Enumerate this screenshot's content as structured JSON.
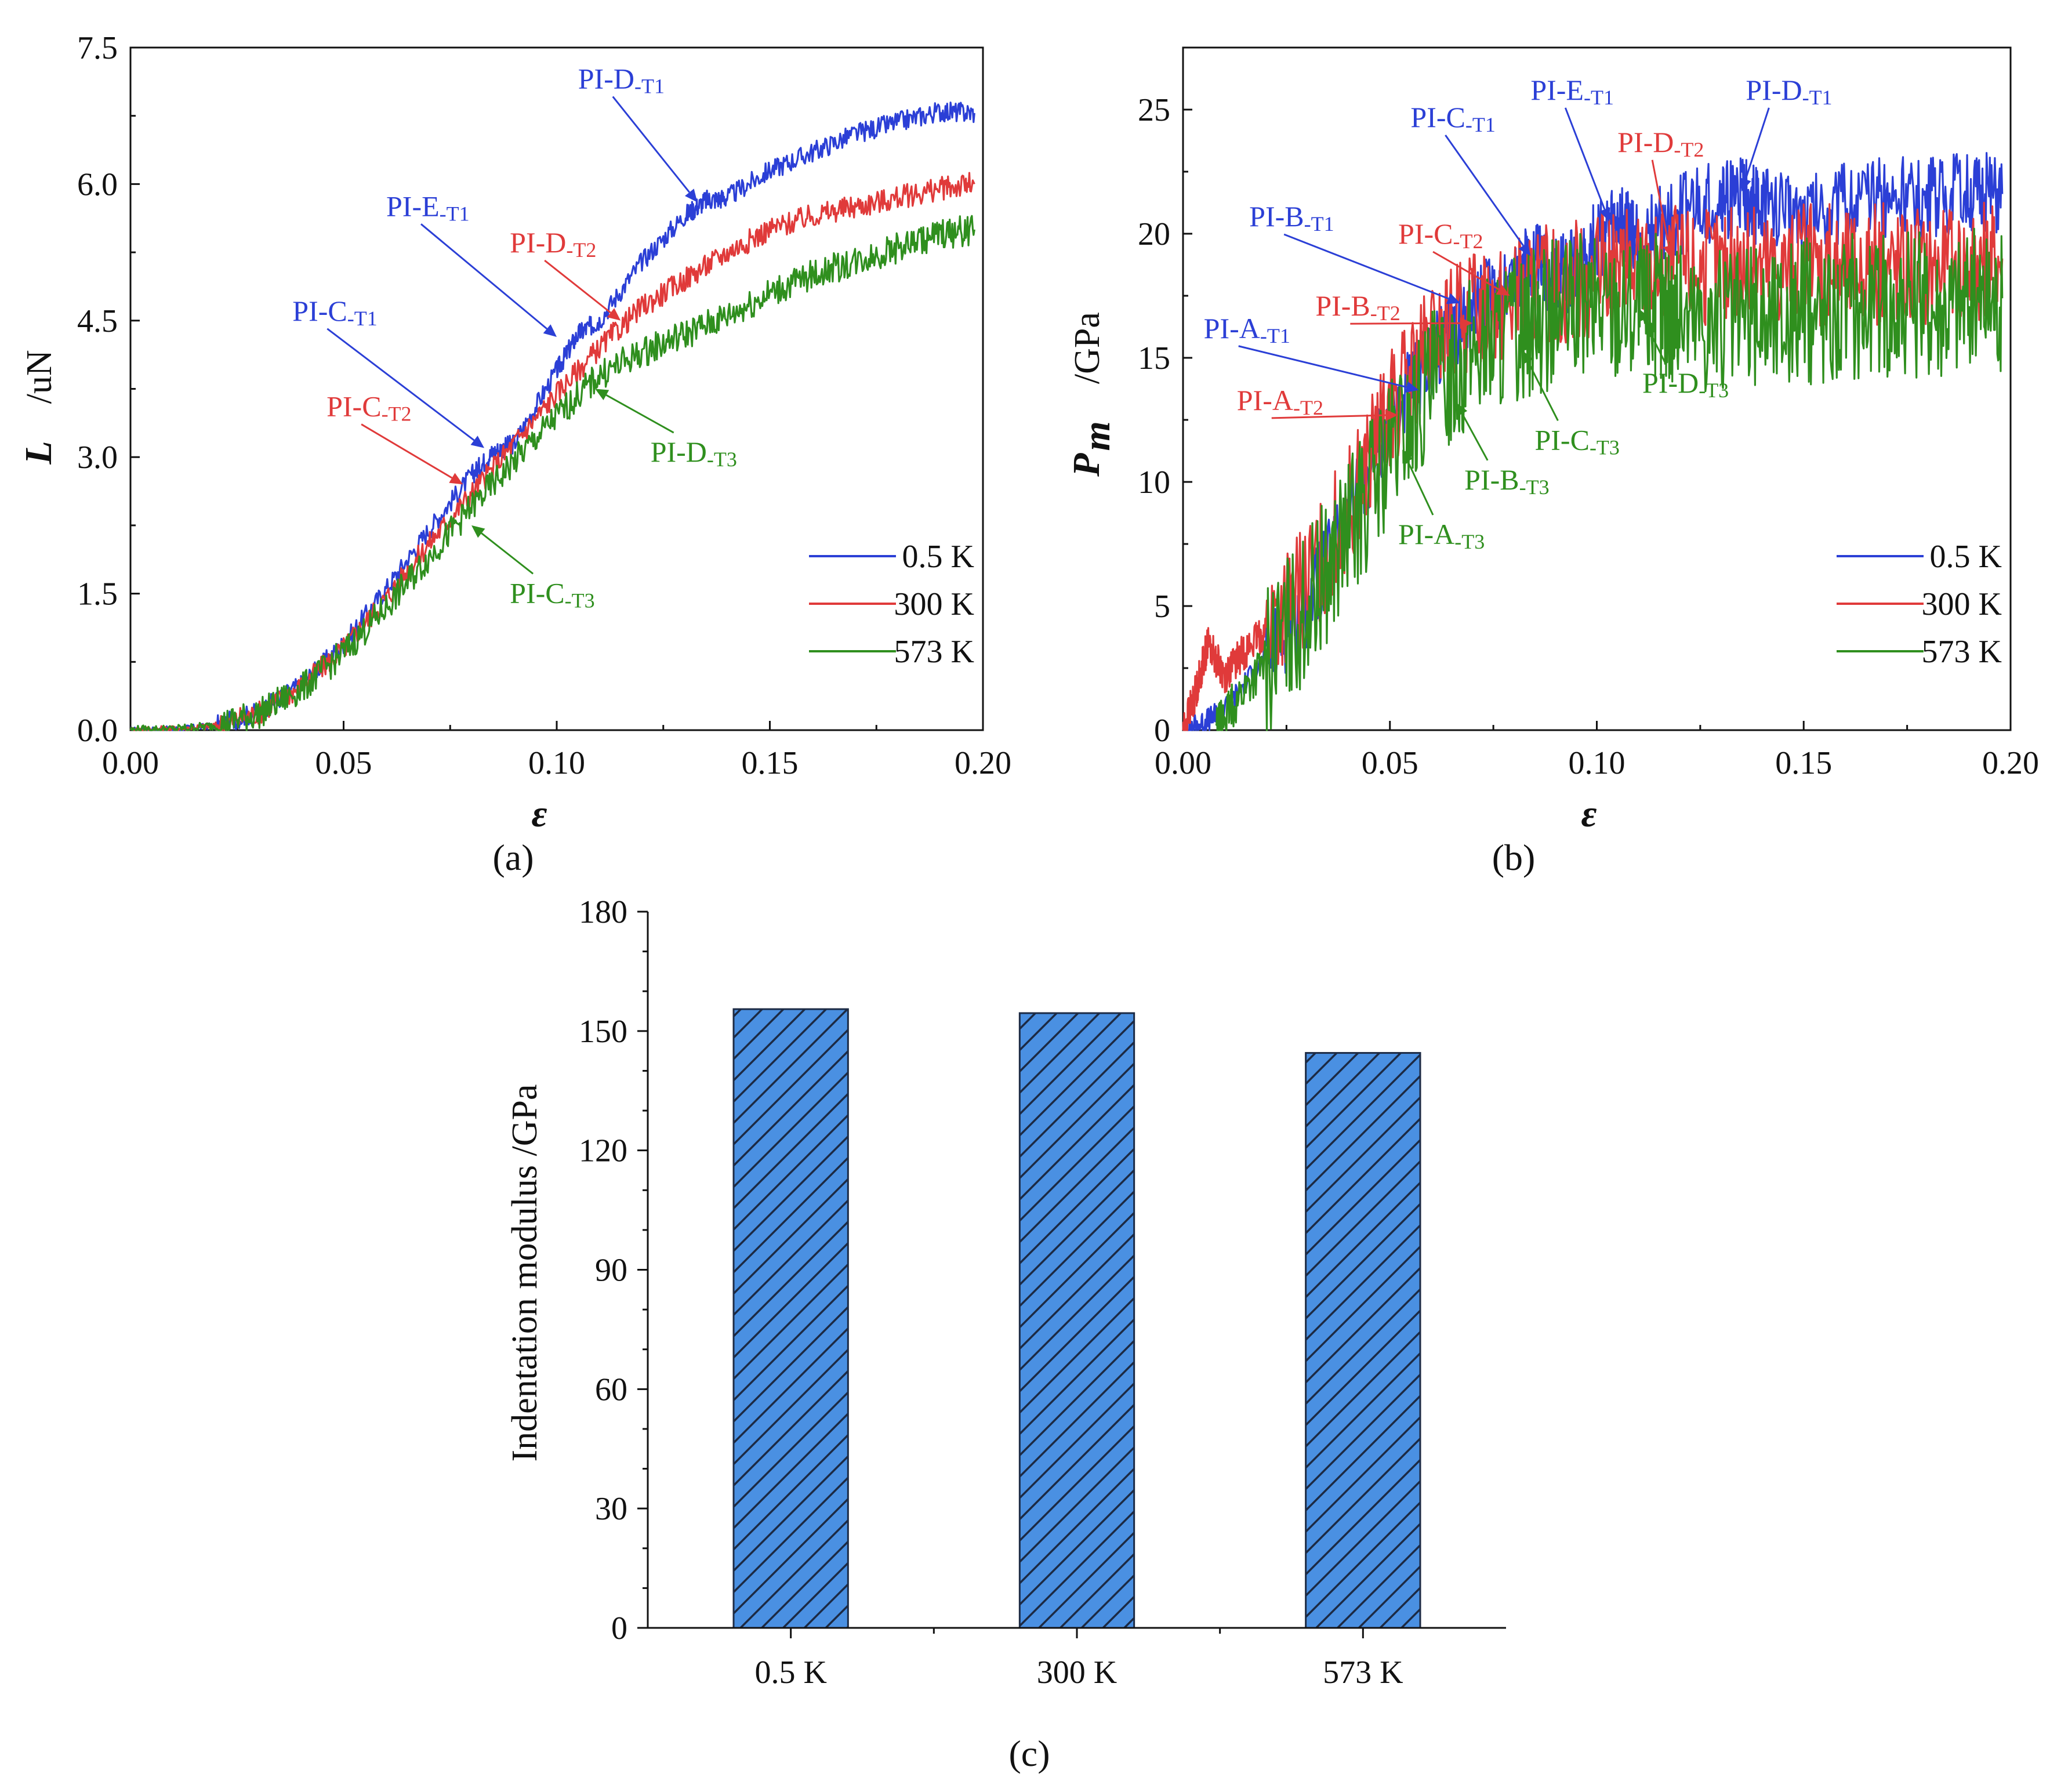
{
  "figure": {
    "colors": {
      "t1": "#2b3fd6",
      "t2": "#e03a3a",
      "t3": "#2f8f1e",
      "bar": "#4a90e2",
      "hatch": "#1c2a44"
    }
  },
  "chart_data": [
    {
      "id": "a",
      "panel_label": "(a)",
      "type": "line",
      "xlabel": "ε",
      "ylabel_var": "L",
      "ylabel_unit": "/uN",
      "xlim": [
        0,
        0.2
      ],
      "ylim": [
        0,
        7.5
      ],
      "xticks": [
        "0.00",
        "0.05",
        "0.10",
        "0.15",
        "0.20"
      ],
      "yticks": [
        "0.0",
        "1.5",
        "3.0",
        "4.5",
        "6.0",
        "7.5"
      ],
      "xtick_values": [
        0,
        0.05,
        0.1,
        0.15,
        0.2
      ],
      "ytick_values": [
        0,
        1.5,
        3.0,
        4.5,
        6.0,
        7.5
      ],
      "legend": {
        "position": "bottom-right",
        "entries": [
          "0.5 K",
          "300 K",
          "573 K"
        ]
      },
      "series": [
        {
          "name": "0.5 K",
          "color": "#2b3fd6",
          "noise": 0.03,
          "x": [
            0,
            0.01,
            0.02,
            0.03,
            0.04,
            0.05,
            0.06,
            0.07,
            0.08,
            0.085,
            0.09,
            0.1,
            0.105,
            0.11,
            0.12,
            0.13,
            0.135,
            0.14,
            0.15,
            0.16,
            0.17,
            0.18,
            0.19,
            0.198
          ],
          "y": [
            0,
            0.01,
            0.05,
            0.2,
            0.5,
            0.95,
            1.55,
            2.2,
            2.8,
            3.05,
            3.15,
            3.95,
            4.35,
            4.5,
            5.15,
            5.65,
            5.82,
            5.85,
            6.15,
            6.35,
            6.55,
            6.68,
            6.8,
            6.78
          ]
        },
        {
          "name": "300 K",
          "color": "#e03a3a",
          "noise": 0.035,
          "x": [
            0,
            0.01,
            0.02,
            0.03,
            0.04,
            0.05,
            0.06,
            0.07,
            0.08,
            0.09,
            0.1,
            0.11,
            0.12,
            0.13,
            0.14,
            0.15,
            0.16,
            0.17,
            0.18,
            0.19,
            0.198
          ],
          "y": [
            0,
            0.01,
            0.05,
            0.19,
            0.48,
            0.9,
            1.45,
            2.05,
            2.6,
            3.15,
            3.7,
            4.2,
            4.65,
            4.95,
            5.25,
            5.5,
            5.65,
            5.75,
            5.85,
            5.95,
            6.0
          ]
        },
        {
          "name": "573 K",
          "color": "#2f8f1e",
          "noise": 0.045,
          "x": [
            0,
            0.01,
            0.02,
            0.03,
            0.04,
            0.05,
            0.06,
            0.07,
            0.08,
            0.09,
            0.1,
            0.11,
            0.12,
            0.13,
            0.14,
            0.15,
            0.16,
            0.17,
            0.18,
            0.19,
            0.198
          ],
          "y": [
            0,
            0.01,
            0.05,
            0.18,
            0.45,
            0.85,
            1.35,
            1.9,
            2.45,
            2.95,
            3.45,
            3.9,
            4.15,
            4.35,
            4.55,
            4.8,
            5.0,
            5.15,
            5.3,
            5.45,
            5.5
          ]
        }
      ],
      "annotations": [
        {
          "main": "PI-D",
          "sub": "-T1",
          "color": "#2b3fd6",
          "pt": [
            0.133,
            5.8
          ],
          "txt": [
            0.105,
            7.05
          ],
          "arrow": true
        },
        {
          "main": "PI-E",
          "sub": "-T1",
          "color": "#2b3fd6",
          "pt": [
            0.1,
            4.32
          ],
          "txt": [
            0.06,
            5.65
          ],
          "arrow": true
        },
        {
          "main": "PI-C",
          "sub": "-T1",
          "color": "#2b3fd6",
          "pt": [
            0.083,
            3.1
          ],
          "txt": [
            0.038,
            4.5
          ],
          "arrow": true
        },
        {
          "main": "PI-D",
          "sub": "-T2",
          "color": "#e03a3a",
          "pt": [
            0.115,
            4.5
          ],
          "txt": [
            0.089,
            5.25
          ],
          "arrow": true
        },
        {
          "main": "PI-C",
          "sub": "-T2",
          "color": "#e03a3a",
          "pt": [
            0.078,
            2.7
          ],
          "txt": [
            0.046,
            3.45
          ],
          "arrow": true
        },
        {
          "main": "PI-D",
          "sub": "-T3",
          "color": "#2f8f1e",
          "pt": [
            0.109,
            3.75
          ],
          "txt": [
            0.122,
            2.95
          ],
          "arrow": true
        },
        {
          "main": "PI-C",
          "sub": "-T3",
          "color": "#2f8f1e",
          "pt": [
            0.08,
            2.25
          ],
          "txt": [
            0.089,
            1.4
          ],
          "arrow": true
        }
      ]
    },
    {
      "id": "b",
      "panel_label": "(b)",
      "type": "line",
      "xlabel": "ε",
      "ylabel_var": "P",
      "ylabel_sub": "m",
      "ylabel_unit": "/GPa",
      "xlim": [
        0,
        0.2
      ],
      "ylim": [
        0,
        27.5
      ],
      "xticks": [
        "0.00",
        "0.05",
        "0.10",
        "0.15",
        "0.20"
      ],
      "yticks": [
        "0",
        "5",
        "10",
        "15",
        "20",
        "25"
      ],
      "xtick_values": [
        0,
        0.05,
        0.1,
        0.15,
        0.2
      ],
      "ytick_values": [
        0,
        5,
        10,
        15,
        20,
        25
      ],
      "legend": {
        "position": "bottom-right",
        "entries": [
          "0.5 K",
          "300 K",
          "573 K"
        ]
      },
      "series": [
        {
          "name": "0.5 K",
          "color": "#2b3fd6",
          "noise": 0.12,
          "x": [
            0,
            0.005,
            0.01,
            0.02,
            0.03,
            0.04,
            0.05,
            0.06,
            0.065,
            0.07,
            0.08,
            0.085,
            0.09,
            0.095,
            0.1,
            0.105,
            0.11,
            0.12,
            0.13,
            0.135,
            0.14,
            0.15,
            0.16,
            0.17,
            0.18,
            0.19,
            0.198
          ],
          "y": [
            0,
            0.3,
            0.8,
            3.0,
            5.0,
            8.5,
            12.5,
            15.0,
            16.0,
            17.0,
            18.3,
            18.9,
            18.2,
            18.6,
            19.8,
            20.3,
            19.8,
            20.8,
            21.4,
            21.5,
            21.0,
            21.0,
            21.2,
            21.5,
            21.4,
            21.7,
            21.6
          ]
        },
        {
          "name": "300 K",
          "color": "#e03a3a",
          "noise": 0.18,
          "x": [
            0,
            0.003,
            0.006,
            0.01,
            0.015,
            0.02,
            0.03,
            0.04,
            0.05,
            0.06,
            0.07,
            0.08,
            0.09,
            0.1,
            0.11,
            0.12,
            0.13,
            0.14,
            0.15,
            0.16,
            0.17,
            0.18,
            0.19,
            0.198
          ],
          "y": [
            0,
            1.5,
            3.5,
            2.2,
            3.2,
            4.0,
            5.8,
            9.0,
            12.8,
            15.5,
            17.0,
            17.5,
            18.0,
            18.3,
            18.7,
            18.8,
            18.6,
            18.7,
            18.8,
            18.7,
            18.8,
            18.7,
            18.9,
            19.0
          ]
        },
        {
          "name": "573 K",
          "color": "#2f8f1e",
          "noise": 0.22,
          "x": [
            0.008,
            0.012,
            0.02,
            0.03,
            0.04,
            0.05,
            0.06,
            0.07,
            0.08,
            0.09,
            0.1,
            0.11,
            0.115,
            0.12,
            0.13,
            0.14,
            0.15,
            0.16,
            0.17,
            0.18,
            0.19,
            0.198
          ],
          "y": [
            0,
            1.0,
            2.8,
            5.0,
            8.0,
            11.2,
            13.8,
            15.3,
            16.2,
            16.8,
            17.1,
            17.2,
            17.0,
            16.8,
            16.4,
            16.6,
            16.8,
            17.0,
            17.1,
            17.2,
            17.3,
            17.4
          ]
        }
      ],
      "annotations": [
        {
          "main": "PI-D",
          "sub": "-T1",
          "color": "#2b3fd6",
          "pt": [
            0.135,
            21.7
          ],
          "txt": [
            0.136,
            25.4
          ],
          "arrow": true
        },
        {
          "main": "PI-E",
          "sub": "-T1",
          "color": "#2b3fd6",
          "pt": [
            0.103,
            20.5
          ],
          "txt": [
            0.084,
            25.4
          ],
          "arrow": true
        },
        {
          "main": "PI-C",
          "sub": "-T1",
          "color": "#2b3fd6",
          "pt": [
            0.084,
            19.1
          ],
          "txt": [
            0.055,
            24.3
          ],
          "arrow": true
        },
        {
          "main": "PI-B",
          "sub": "-T1",
          "color": "#2b3fd6",
          "pt": [
            0.067,
            17.2
          ],
          "txt": [
            0.016,
            20.3
          ],
          "arrow": true
        },
        {
          "main": "PI-A",
          "sub": "-T1",
          "color": "#2b3fd6",
          "pt": [
            0.057,
            13.7
          ],
          "txt": [
            0.005,
            15.8
          ],
          "arrow": true
        },
        {
          "main": "PI-D",
          "sub": "-T2",
          "color": "#e03a3a",
          "pt": [
            0.118,
            19.0
          ],
          "txt": [
            0.105,
            23.3
          ],
          "arrow": true
        },
        {
          "main": "PI-C",
          "sub": "-T2",
          "color": "#e03a3a",
          "pt": [
            0.079,
            17.5
          ],
          "txt": [
            0.052,
            19.6
          ],
          "arrow": true
        },
        {
          "main": "PI-B",
          "sub": "-T2",
          "color": "#e03a3a",
          "pt": [
            0.07,
            16.4
          ],
          "txt": [
            0.032,
            16.7
          ],
          "arrow": true
        },
        {
          "main": "PI-A",
          "sub": "-T2",
          "color": "#e03a3a",
          "pt": [
            0.052,
            12.7
          ],
          "txt": [
            0.013,
            12.9
          ],
          "arrow": true
        },
        {
          "main": "PI-D",
          "sub": "-T3",
          "color": "#2f8f1e",
          "pt": [
            0.11,
            17.0
          ],
          "txt": [
            0.111,
            13.6
          ],
          "arrow": true
        },
        {
          "main": "PI-C",
          "sub": "-T3",
          "color": "#2f8f1e",
          "pt": [
            0.082,
            15.3
          ],
          "txt": [
            0.085,
            11.3
          ],
          "arrow": true
        },
        {
          "main": "PI-B",
          "sub": "-T3",
          "color": "#2f8f1e",
          "pt": [
            0.066,
            13.2
          ],
          "txt": [
            0.068,
            9.7
          ],
          "arrow": true
        },
        {
          "main": "PI-A",
          "sub": "-T3",
          "color": "#2f8f1e",
          "pt": [
            0.053,
            11.3
          ],
          "txt": [
            0.052,
            7.5
          ],
          "arrow": true
        }
      ]
    },
    {
      "id": "c",
      "panel_label": "(c)",
      "type": "bar",
      "title": "",
      "xlabel": "",
      "ylabel": "Indentation modulus  /GPa",
      "categories": [
        "0.5 K",
        "300 K",
        "573 K"
      ],
      "values": [
        155.5,
        154.5,
        144.5
      ],
      "ylim": [
        0,
        180
      ],
      "yticks": [
        "0",
        "30",
        "60",
        "90",
        "120",
        "150",
        "180"
      ],
      "ytick_values": [
        0,
        30,
        60,
        90,
        120,
        150,
        180
      ],
      "bar_color": "#4a90e2",
      "hatch_color": "#1c2a44"
    }
  ]
}
